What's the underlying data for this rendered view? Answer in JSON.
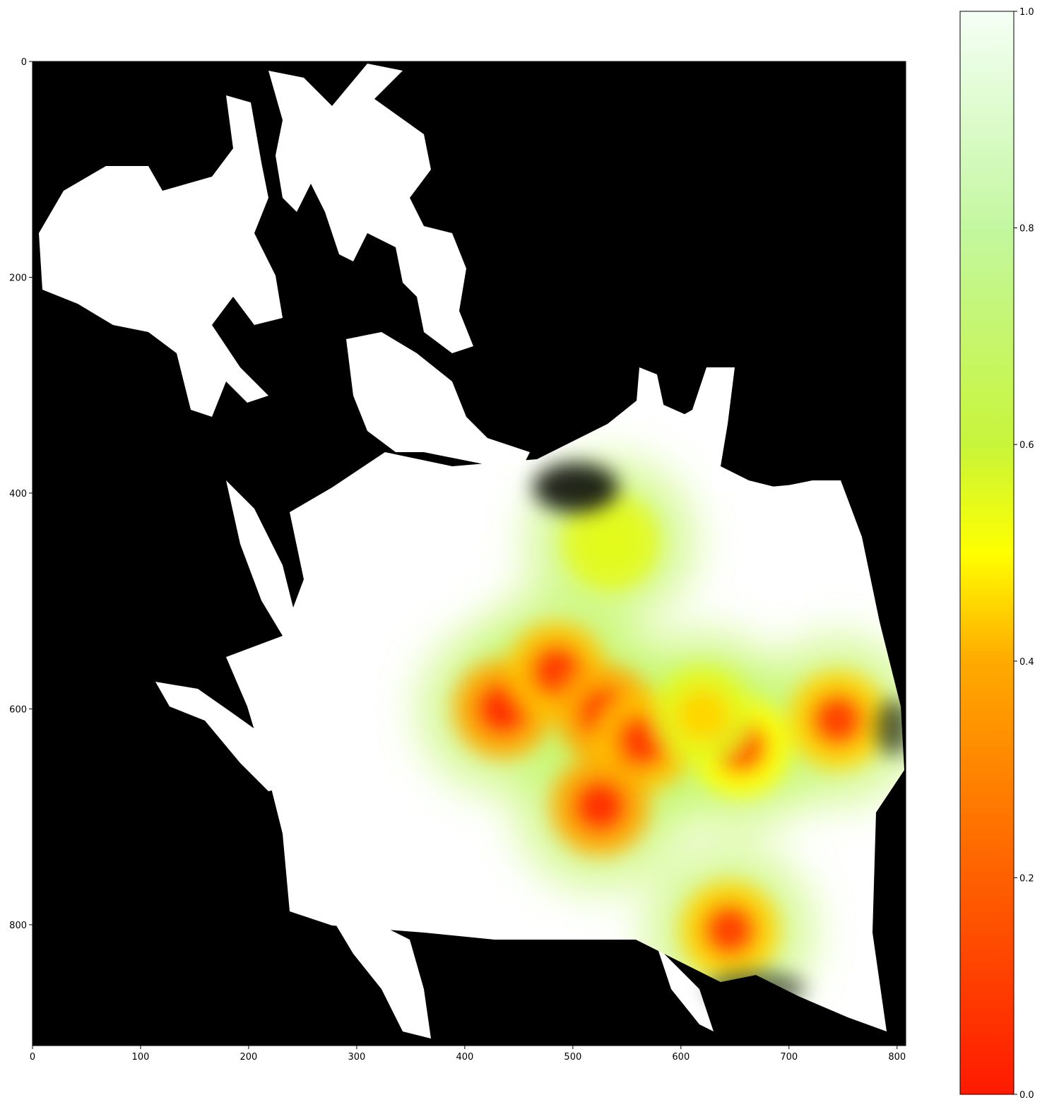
{
  "chart_data": [
    {
      "type": "heatmap",
      "title": "",
      "xlabel": "",
      "ylabel": "",
      "xlim": [
        0,
        808
      ],
      "ylim": [
        912,
        0
      ],
      "x_ticks": [
        "0",
        "100",
        "200",
        "300",
        "400",
        "500",
        "600",
        "700",
        "800"
      ],
      "y_ticks": [
        "0",
        "200",
        "400",
        "600",
        "800"
      ],
      "x_tick_values": [
        0,
        100,
        200,
        300,
        400,
        500,
        600,
        700,
        800
      ],
      "y_tick_values": [
        0,
        200,
        400,
        600,
        800
      ],
      "background_color": "#000000",
      "land_color": "#ffffff",
      "low_value_regions": [
        {
          "x": 435,
          "y": 600,
          "value": 0.05
        },
        {
          "x": 485,
          "y": 565,
          "value": 0.08
        },
        {
          "x": 530,
          "y": 605,
          "value": 0.05
        },
        {
          "x": 565,
          "y": 630,
          "value": 0.08
        },
        {
          "x": 525,
          "y": 690,
          "value": 0.05
        },
        {
          "x": 745,
          "y": 610,
          "value": 0.1
        },
        {
          "x": 655,
          "y": 635,
          "value": 0.15
        },
        {
          "x": 645,
          "y": 805,
          "value": 0.1
        },
        {
          "x": 620,
          "y": 605,
          "value": 0.45
        },
        {
          "x": 535,
          "y": 445,
          "value": 0.55
        }
      ]
    },
    {
      "type": "colorbar",
      "range": [
        0.0,
        1.0
      ],
      "ticks": [
        "0.0",
        "0.2",
        "0.4",
        "0.6",
        "0.8",
        "1.0"
      ],
      "tick_values": [
        0.0,
        0.2,
        0.4,
        0.6,
        0.8,
        1.0
      ],
      "colormap": [
        {
          "value": 0.0,
          "color": "#ff1a00"
        },
        {
          "value": 0.2,
          "color": "#ff6000"
        },
        {
          "value": 0.4,
          "color": "#ffaa00"
        },
        {
          "value": 0.5,
          "color": "#ffff00"
        },
        {
          "value": 0.6,
          "color": "#c8f53a"
        },
        {
          "value": 0.8,
          "color": "#c3f7a0"
        },
        {
          "value": 1.0,
          "color": "#f5fff5"
        }
      ]
    }
  ]
}
